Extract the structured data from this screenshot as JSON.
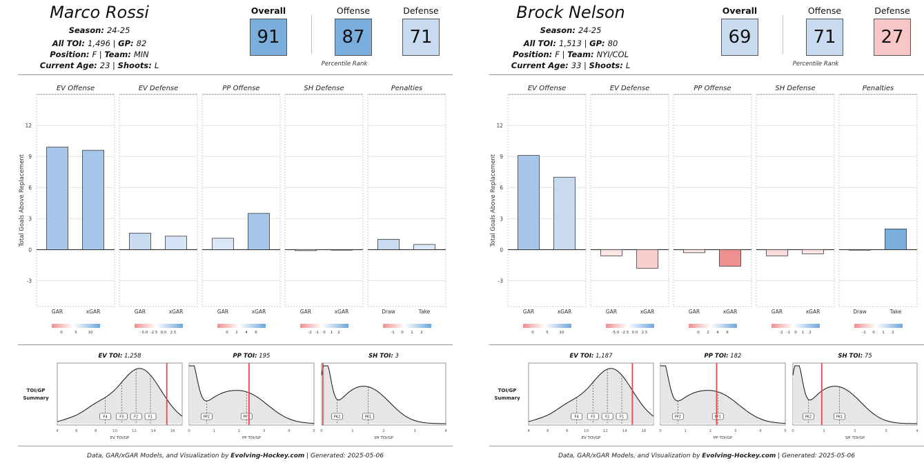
{
  "axis_title": "Total Goals Above Replacement",
  "panel_titles": [
    "EV Offense",
    "EV Defense",
    "PP Offense",
    "SH Defense",
    "Penalties"
  ],
  "rating_labels": {
    "overall": "Overall",
    "offense": "Offense",
    "defense": "Defense",
    "percentile": "Percentile Rank"
  },
  "toi_summary_label": [
    "TOI/GP",
    "Summary"
  ],
  "footer": {
    "prefix": "Data, GAR/xGAR Models, and Visualization by ",
    "site": "Evolving-Hockey.com",
    "suffix": " | Generated: 2025-05-06"
  },
  "colors": {
    "blue_strong": "#7aaedd",
    "blue_mid": "#a6c6ea",
    "blue_light": "#c9dbf1",
    "red_light": "#f7cfcf",
    "red_strong": "#ef8f8f",
    "vline": "#e8474c"
  },
  "players": [
    {
      "name": "Marco Rossi",
      "season_label": "Season",
      "season": "24-25",
      "toi_label": "All TOI",
      "toi": "1,496",
      "gp_label": "GP",
      "gp": "82",
      "pos_label": "Position",
      "pos": "F",
      "team_label": "Team",
      "team": "MIN",
      "age_label": "Current Age",
      "age": "23",
      "shoots_label": "Shoots",
      "shoots": "L",
      "overall": "91",
      "offense": "87",
      "defense": "71",
      "overall_color": "#7aaedd",
      "offense_color": "#7aaedd",
      "defense_color": "#c9dbf1",
      "density_titles": [
        {
          "b": "EV TOI",
          "v": "1,258"
        },
        {
          "b": "PP TOI",
          "v": "195"
        },
        {
          "b": "SH TOI",
          "v": "3"
        }
      ]
    },
    {
      "name": "Brock Nelson",
      "season_label": "Season",
      "season": "24-25",
      "toi_label": "All TOI",
      "toi": "1,513",
      "gp_label": "GP",
      "gp": "80",
      "pos_label": "Position",
      "pos": "F",
      "team_label": "Team",
      "team": "NYI/COL",
      "age_label": "Current Age",
      "age": "33",
      "shoots_label": "Shoots",
      "shoots": "L",
      "overall": "69",
      "offense": "71",
      "defense": "27",
      "overall_color": "#c9dbf1",
      "offense_color": "#c9dbf1",
      "defense_color": "#f7c6c6",
      "density_titles": [
        {
          "b": "EV TOI",
          "v": "1,187"
        },
        {
          "b": "PP TOI",
          "v": "182"
        },
        {
          "b": "SH TOI",
          "v": "75"
        }
      ]
    }
  ],
  "chart_data": [
    {
      "type": "bar",
      "title": "Marco Rossi",
      "ylabel": "Total Goals Above Replacement",
      "ylim": [
        -5.5,
        15
      ],
      "yticks": [
        -3,
        0,
        3,
        6,
        9,
        12
      ],
      "panels": [
        {
          "title": "EV Offense",
          "categories": [
            "GAR",
            "xGAR"
          ],
          "values": [
            9.9,
            9.6
          ],
          "colors": [
            "#a6c6ea",
            "#a6c6ea"
          ],
          "scale": [
            "0",
            "5",
            "10"
          ]
        },
        {
          "title": "EV Defense",
          "categories": [
            "GAR",
            "xGAR"
          ],
          "values": [
            1.6,
            1.3
          ],
          "colors": [
            "#c9dbf1",
            "#d4e3f5"
          ],
          "scale": [
            "-5.0",
            "-2.5",
            "0.0",
            "2.5"
          ]
        },
        {
          "title": "PP Offense",
          "categories": [
            "GAR",
            "xGAR"
          ],
          "values": [
            1.1,
            3.5
          ],
          "colors": [
            "#dbe7f7",
            "#a6c6ea"
          ],
          "scale": [
            "0",
            "2",
            "4",
            "6"
          ]
        },
        {
          "title": "SH Defense",
          "categories": [
            "GAR",
            "xGAR"
          ],
          "values": [
            -0.1,
            -0.05
          ],
          "colors": [
            "#f7e5e5",
            "#f7e5e5"
          ],
          "scale": [
            "-2",
            "-1",
            "0",
            "1",
            "2"
          ]
        },
        {
          "title": "Penalties",
          "categories": [
            "Draw",
            "Take"
          ],
          "values": [
            1.0,
            0.5
          ],
          "colors": [
            "#c9dbf1",
            "#dbe7f7"
          ],
          "scale": [
            "-1",
            "0",
            "1",
            "2"
          ]
        }
      ],
      "density": [
        {
          "title": "EV TOI",
          "xlabel": "EV TOI/GP",
          "xticks": [
            4,
            6,
            8,
            10,
            12,
            14,
            16
          ],
          "xlim": [
            4,
            17
          ],
          "player_value": 15.4,
          "quantiles": [
            9,
            10.7,
            12.2,
            13.7
          ],
          "quantile_labels": [
            "F4",
            "F3",
            "F2",
            "F1"
          ],
          "peak": 12.5
        },
        {
          "title": "PP TOI",
          "xlabel": "PP TOI/GP",
          "xticks": [
            0,
            1,
            2,
            3,
            4,
            5
          ],
          "xlim": [
            0,
            5
          ],
          "player_value": 2.4,
          "quantiles": [
            0.7,
            2.3
          ],
          "quantile_labels": [
            "PP2",
            "PP1"
          ]
        },
        {
          "title": "SH TOI",
          "xlabel": "SH TOI/GP",
          "xticks": [
            0,
            1,
            2,
            3,
            4
          ],
          "xlim": [
            0,
            4
          ],
          "player_value": 0.04,
          "quantiles": [
            0.5,
            1.5
          ],
          "quantile_labels": [
            "PK2",
            "PK1"
          ]
        }
      ]
    },
    {
      "type": "bar",
      "title": "Brock Nelson",
      "ylabel": "Total Goals Above Replacement",
      "ylim": [
        -5.5,
        15
      ],
      "yticks": [
        -3,
        0,
        3,
        6,
        9,
        12
      ],
      "panels": [
        {
          "title": "EV Offense",
          "categories": [
            "GAR",
            "xGAR"
          ],
          "values": [
            9.1,
            7.0
          ],
          "colors": [
            "#a6c6ea",
            "#c9dbf1"
          ],
          "scale": [
            "0",
            "5",
            "10"
          ]
        },
        {
          "title": "EV Defense",
          "categories": [
            "GAR",
            "xGAR"
          ],
          "values": [
            -0.6,
            -1.8
          ],
          "colors": [
            "#fbe6e6",
            "#f7cfcf"
          ],
          "scale": [
            "-5.0",
            "-2.5",
            "0.0",
            "2.5"
          ]
        },
        {
          "title": "PP Offense",
          "categories": [
            "GAR",
            "xGAR"
          ],
          "values": [
            -0.3,
            -1.6
          ],
          "colors": [
            "#fbe6e6",
            "#ef8f8f"
          ],
          "scale": [
            "0",
            "2",
            "4",
            "6"
          ]
        },
        {
          "title": "SH Defense",
          "categories": [
            "GAR",
            "xGAR"
          ],
          "values": [
            -0.6,
            -0.4
          ],
          "colors": [
            "#f7dada",
            "#fbe6e6"
          ],
          "scale": [
            "-2",
            "-1",
            "0",
            "1",
            "2"
          ]
        },
        {
          "title": "Penalties",
          "categories": [
            "Draw",
            "Take"
          ],
          "values": [
            0.0,
            2.0
          ],
          "colors": [
            "#ffffff",
            "#7aaedd"
          ],
          "scale": [
            "-1",
            "0",
            "1",
            "2"
          ]
        }
      ],
      "density": [
        {
          "title": "EV TOI",
          "xlabel": "EV TOI/GP",
          "xticks": [
            4,
            6,
            8,
            10,
            12,
            14,
            16
          ],
          "xlim": [
            4,
            17
          ],
          "player_value": 14.8,
          "quantiles": [
            9,
            10.7,
            12.2,
            13.7
          ],
          "quantile_labels": [
            "F4",
            "F3",
            "F2",
            "F1"
          ],
          "peak": 12.5
        },
        {
          "title": "PP TOI",
          "xlabel": "PP TOI/GP",
          "xticks": [
            0,
            1,
            2,
            3,
            4,
            5
          ],
          "xlim": [
            0,
            5
          ],
          "player_value": 2.25,
          "quantiles": [
            0.7,
            2.3
          ],
          "quantile_labels": [
            "PP2",
            "PP1"
          ]
        },
        {
          "title": "SH TOI",
          "xlabel": "SH TOI/GP",
          "xticks": [
            0,
            1,
            2,
            3,
            4
          ],
          "xlim": [
            0,
            4
          ],
          "player_value": 0.93,
          "quantiles": [
            0.5,
            1.5
          ],
          "quantile_labels": [
            "PK2",
            "PK1"
          ]
        }
      ]
    }
  ]
}
